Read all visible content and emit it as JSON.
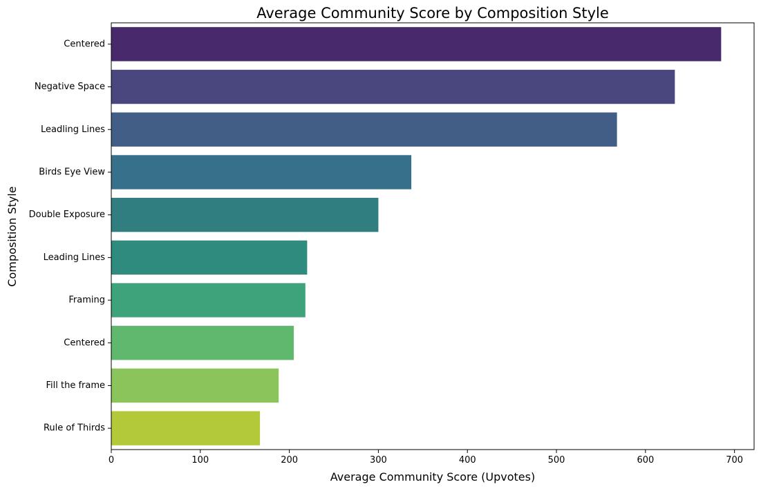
{
  "chart_data": {
    "type": "bar",
    "orientation": "horizontal",
    "title": "Average Community Score by Composition Style",
    "xlabel": "Average Community Score (Upvotes)",
    "ylabel": "Composition Style",
    "xlim": [
      0,
      722
    ],
    "x_ticks": [
      0,
      100,
      200,
      300,
      400,
      500,
      600,
      700
    ],
    "grid": false,
    "categories": [
      "Centered",
      "Negative Space",
      "Leadling Lines",
      "Birds Eye View",
      "Double Exposure",
      "Leading Lines",
      "Framing",
      "Centered ",
      "Fill the frame",
      "Rule of Thirds"
    ],
    "values": [
      685,
      633,
      568,
      337,
      300,
      220,
      218,
      205,
      188,
      167
    ],
    "colors": [
      "#482A6C",
      "#4A477F",
      "#425E87",
      "#37708A",
      "#317E81",
      "#2E8B7E",
      "#3EA27A",
      "#60B76E",
      "#8AC45B",
      "#B3C93A"
    ]
  }
}
